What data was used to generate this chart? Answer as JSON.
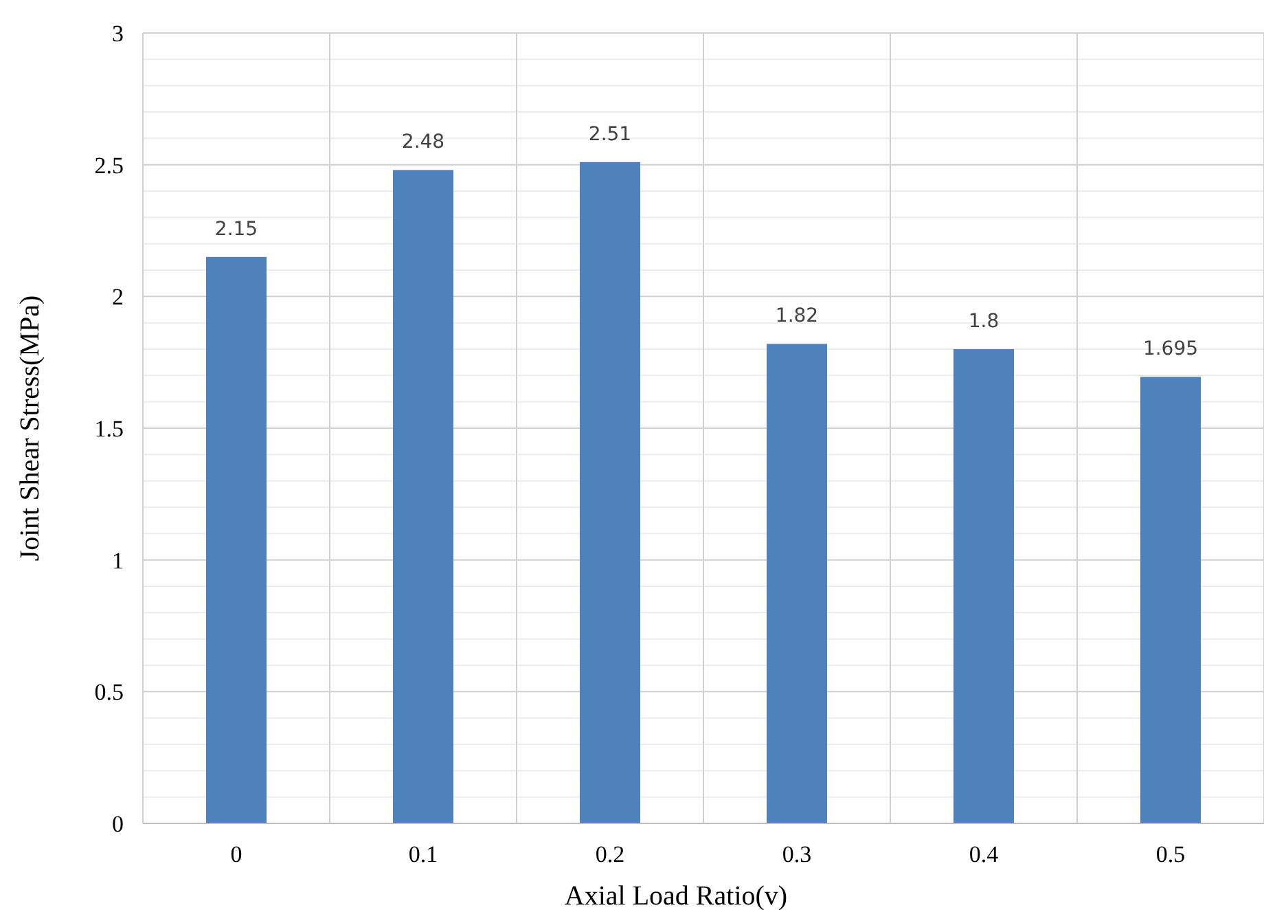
{
  "chart_data": {
    "type": "bar",
    "xlabel": "Axial Load Ratio(v)",
    "ylabel": "Joint Shear Stress(MPa)",
    "categories": [
      "0",
      "0.1",
      "0.2",
      "0.3",
      "0.4",
      "0.5"
    ],
    "values": [
      2.15,
      2.48,
      2.51,
      1.82,
      1.8,
      1.695
    ],
    "color": "#4f81bd",
    "ylim": [
      0,
      3
    ],
    "yticks": [
      0,
      {
        "value": 0.1,
        "label": null
      },
      {
        "value": 0.2,
        "label": null
      },
      {
        "value": 0.3,
        "label": null
      },
      {
        "value": 0.4,
        "label": null
      },
      0.5,
      {
        "value": 0.6,
        "label": null
      },
      {
        "value": 0.7,
        "label": null
      },
      {
        "value": 0.8,
        "label": null
      },
      {
        "value": 0.9,
        "label": null
      },
      1,
      {
        "value": 1.1,
        "label": null
      },
      {
        "value": 1.2,
        "label": null
      },
      {
        "value": 1.3,
        "label": null
      },
      {
        "value": 1.4,
        "label": null
      },
      1.5,
      {
        "value": 1.6,
        "label": null
      },
      {
        "value": 1.7,
        "label": null
      },
      {
        "value": 1.8,
        "label": null
      },
      {
        "value": 1.9,
        "label": null
      },
      2,
      {
        "value": 2.1,
        "label": null
      },
      {
        "value": 2.2,
        "label": null
      },
      {
        "value": 2.3,
        "label": null
      },
      {
        "value": 2.4,
        "label": null
      },
      2.5,
      {
        "value": 2.6,
        "label": null
      },
      {
        "value": 2.7,
        "label": null
      },
      {
        "value": 2.8,
        "label": null
      },
      {
        "value": 2.9,
        "label": null
      },
      3
    ],
    "grid": true,
    "data_labels": true
  }
}
